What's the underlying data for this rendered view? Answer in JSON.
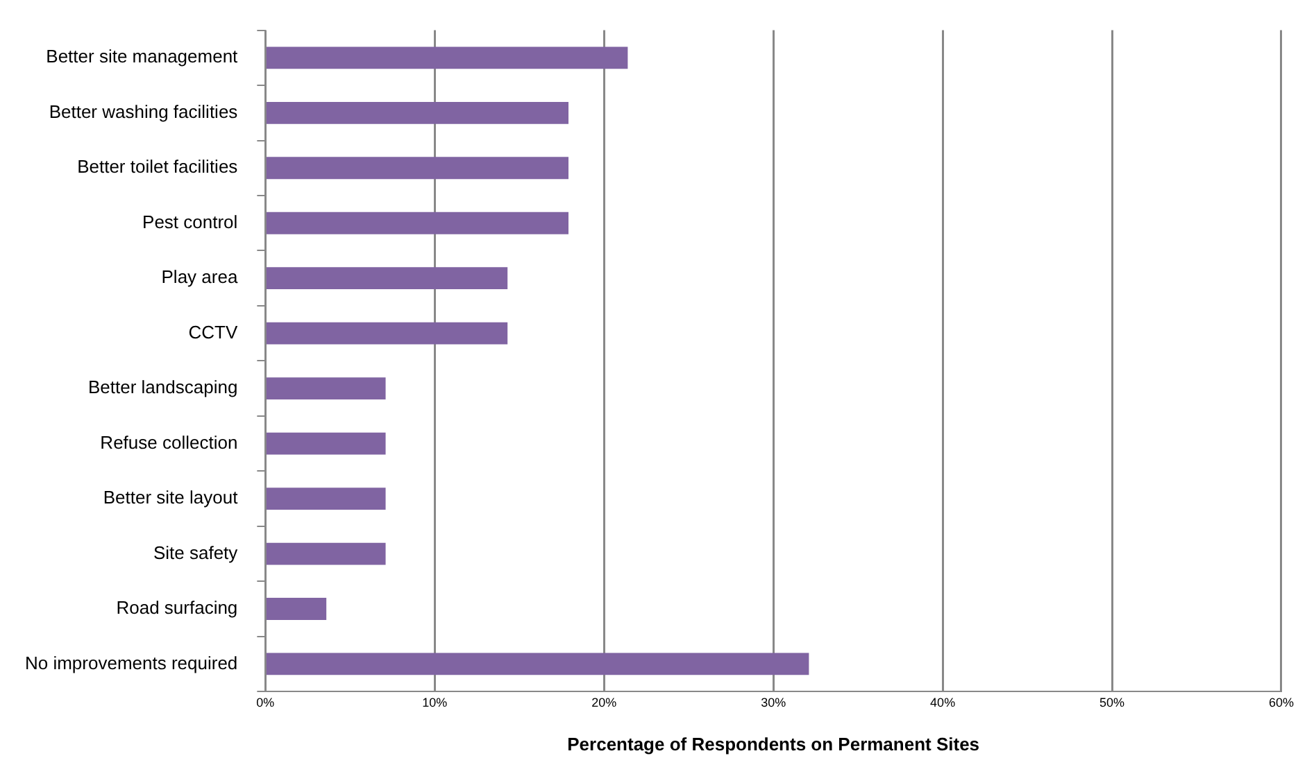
{
  "chart_data": {
    "type": "bar",
    "orientation": "horizontal",
    "xlabel": "Percentage of Respondents on Permanent Sites",
    "categories": [
      "Better site management",
      "Better washing facilities",
      "Better toilet facilities",
      "Pest control",
      "Play area",
      "CCTV",
      "Better landscaping",
      "Refuse collection",
      "Better site layout",
      "Site safety",
      "Road surfacing",
      "No improvements required"
    ],
    "values": [
      21.4,
      17.9,
      17.9,
      17.9,
      14.3,
      14.3,
      7.1,
      7.1,
      7.1,
      7.1,
      3.6,
      32.1
    ],
    "color": "#8064a2",
    "xlim": [
      0,
      60
    ],
    "xticks": [
      {
        "value": 0,
        "label": "0%"
      },
      {
        "value": 10,
        "label": "10%"
      },
      {
        "value": 20,
        "label": "20%"
      },
      {
        "value": 30,
        "label": "30%"
      },
      {
        "value": 40,
        "label": "40%"
      },
      {
        "value": 50,
        "label": "50%"
      },
      {
        "value": 60,
        "label": "60%"
      }
    ],
    "grid": "x",
    "legend": false
  }
}
